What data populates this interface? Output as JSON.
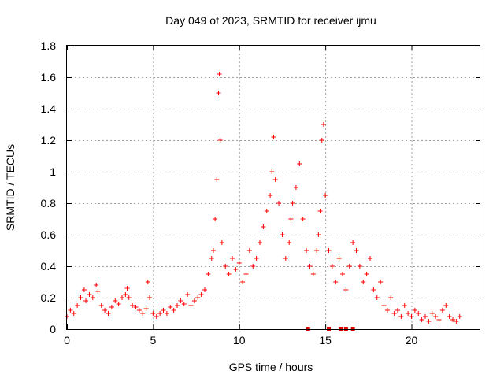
{
  "chart_data": {
    "type": "scatter",
    "title": "Day 049 of 2023, SRMTID for receiver ijmu",
    "xlabel": "GPS time / hours",
    "ylabel": "SRMTID / TECUs",
    "xlim": [
      0,
      24
    ],
    "ylim": [
      0,
      1.8
    ],
    "x_ticks": [
      0,
      5,
      10,
      15,
      20
    ],
    "y_ticks": [
      0,
      0.2,
      0.4,
      0.6,
      0.8,
      1,
      1.2,
      1.4,
      1.6,
      1.8
    ],
    "x_tick_labels": [
      "0",
      "5",
      "10",
      "15",
      "20"
    ],
    "y_tick_labels": [
      "0",
      "0.2",
      "0.4",
      "0.6",
      "0.8",
      "1",
      "1.2",
      "1.4",
      "1.6",
      "1.8"
    ],
    "grid": true,
    "marker": "+",
    "color": "#ff0000",
    "series": [
      {
        "name": "SRMTID",
        "x": [
          0.0,
          0.2,
          0.4,
          0.6,
          0.8,
          1.0,
          1.1,
          1.3,
          1.5,
          1.7,
          1.8,
          2.0,
          2.2,
          2.4,
          2.6,
          2.8,
          3.0,
          3.2,
          3.4,
          3.5,
          3.6,
          3.8,
          4.0,
          4.2,
          4.4,
          4.6,
          4.7,
          4.8,
          5.0,
          5.2,
          5.4,
          5.6,
          5.8,
          6.0,
          6.2,
          6.4,
          6.6,
          6.8,
          7.0,
          7.2,
          7.4,
          7.6,
          7.8,
          8.0,
          8.2,
          8.4,
          8.5,
          8.6,
          8.7,
          8.8,
          8.85,
          8.9,
          9.0,
          9.2,
          9.4,
          9.6,
          9.8,
          10.0,
          10.2,
          10.4,
          10.6,
          10.8,
          11.0,
          11.2,
          11.4,
          11.6,
          11.8,
          11.9,
          12.0,
          12.1,
          12.3,
          12.5,
          12.7,
          12.9,
          13.0,
          13.1,
          13.3,
          13.5,
          13.7,
          13.9,
          14.1,
          14.3,
          14.5,
          14.6,
          14.7,
          14.8,
          14.9,
          15.0,
          15.2,
          15.4,
          15.6,
          15.8,
          16.0,
          16.2,
          16.4,
          16.6,
          16.8,
          17.0,
          17.2,
          17.4,
          17.6,
          17.8,
          18.0,
          18.2,
          18.4,
          18.6,
          18.8,
          19.0,
          19.2,
          19.4,
          19.6,
          19.8,
          20.0,
          20.2,
          20.4,
          20.6,
          20.8,
          21.0,
          21.2,
          21.4,
          21.6,
          21.8,
          22.0,
          22.2,
          22.4,
          22.6,
          22.8
        ],
        "y": [
          0.08,
          0.12,
          0.1,
          0.15,
          0.2,
          0.25,
          0.18,
          0.22,
          0.2,
          0.28,
          0.24,
          0.15,
          0.12,
          0.1,
          0.14,
          0.18,
          0.16,
          0.2,
          0.22,
          0.26,
          0.2,
          0.15,
          0.14,
          0.12,
          0.1,
          0.13,
          0.3,
          0.2,
          0.1,
          0.08,
          0.1,
          0.12,
          0.1,
          0.14,
          0.12,
          0.15,
          0.18,
          0.16,
          0.22,
          0.15,
          0.18,
          0.2,
          0.22,
          0.25,
          0.35,
          0.45,
          0.5,
          0.7,
          0.95,
          1.5,
          1.62,
          1.2,
          0.55,
          0.4,
          0.35,
          0.45,
          0.38,
          0.42,
          0.3,
          0.35,
          0.5,
          0.4,
          0.45,
          0.55,
          0.65,
          0.75,
          0.85,
          1.0,
          1.22,
          0.95,
          0.8,
          0.6,
          0.45,
          0.55,
          0.7,
          0.8,
          0.9,
          1.05,
          0.7,
          0.5,
          0.4,
          0.35,
          0.5,
          0.6,
          0.75,
          1.2,
          1.3,
          0.85,
          0.5,
          0.4,
          0.3,
          0.45,
          0.35,
          0.25,
          0.4,
          0.55,
          0.5,
          0.4,
          0.3,
          0.35,
          0.45,
          0.25,
          0.2,
          0.3,
          0.15,
          0.12,
          0.2,
          0.1,
          0.12,
          0.08,
          0.15,
          0.1,
          0.08,
          0.12,
          0.1,
          0.06,
          0.08,
          0.05,
          0.1,
          0.08,
          0.06,
          0.12,
          0.15,
          0.08,
          0.06,
          0.05,
          0.08
        ],
        "zero_markers_x": [
          14.0,
          15.2,
          15.9,
          16.2,
          16.6
        ]
      }
    ]
  }
}
